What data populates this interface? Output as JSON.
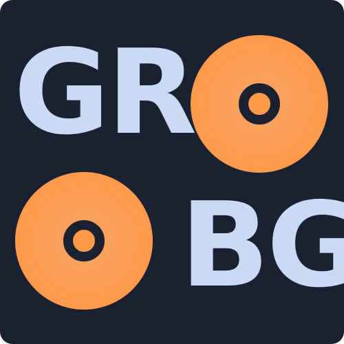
{
  "logo": {
    "top_text": "GR",
    "bottom_text": "BG",
    "colors": {
      "background": "#1b2130",
      "letters": "#c8daf5",
      "disc_outer": "#ff9a4a",
      "disc_center": "#f7a468",
      "hub_ring": "#1b2130"
    },
    "icons": [
      "disc-icon",
      "disc-icon"
    ]
  }
}
